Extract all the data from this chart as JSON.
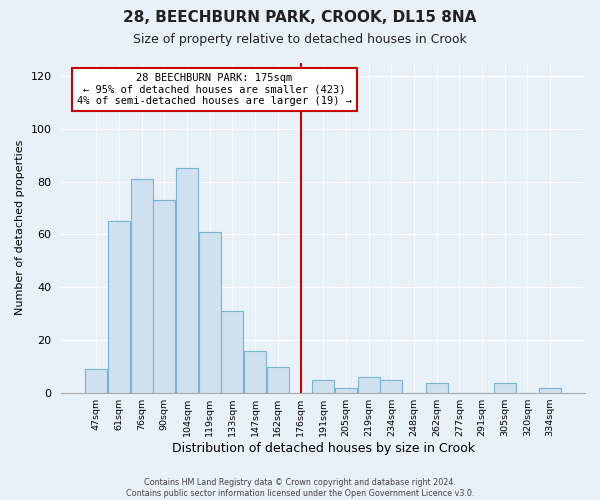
{
  "title": "28, BEECHBURN PARK, CROOK, DL15 8NA",
  "subtitle": "Size of property relative to detached houses in Crook",
  "xlabel": "Distribution of detached houses by size in Crook",
  "ylabel": "Number of detached properties",
  "bar_labels": [
    "47sqm",
    "61sqm",
    "76sqm",
    "90sqm",
    "104sqm",
    "119sqm",
    "133sqm",
    "147sqm",
    "162sqm",
    "176sqm",
    "191sqm",
    "205sqm",
    "219sqm",
    "234sqm",
    "248sqm",
    "262sqm",
    "277sqm",
    "291sqm",
    "305sqm",
    "320sqm",
    "334sqm"
  ],
  "bar_values": [
    9,
    65,
    81,
    73,
    85,
    61,
    31,
    16,
    10,
    0,
    5,
    2,
    6,
    5,
    0,
    4,
    0,
    0,
    4,
    0,
    2
  ],
  "bar_color": "#cfe0ee",
  "bar_edge_color": "#7ab4d4",
  "vline_color": "#cc0000",
  "annotation_title": "28 BEECHBURN PARK: 175sqm",
  "annotation_line1": "← 95% of detached houses are smaller (423)",
  "annotation_line2": "4% of semi-detached houses are larger (19) →",
  "annotation_box_facecolor": "#ffffff",
  "annotation_box_edgecolor": "#cc0000",
  "ylim": [
    0,
    125
  ],
  "yticks": [
    0,
    20,
    40,
    60,
    80,
    100,
    120
  ],
  "footer1": "Contains HM Land Registry data © Crown copyright and database right 2024.",
  "footer2": "Contains public sector information licensed under the Open Government Licence v3.0.",
  "background_color": "#e8f0f8",
  "plot_bg_color": "#e8f0f8",
  "grid_color": "#ffffff",
  "title_fontsize": 11,
  "subtitle_fontsize": 9,
  "ylabel_fontsize": 8,
  "xlabel_fontsize": 9
}
